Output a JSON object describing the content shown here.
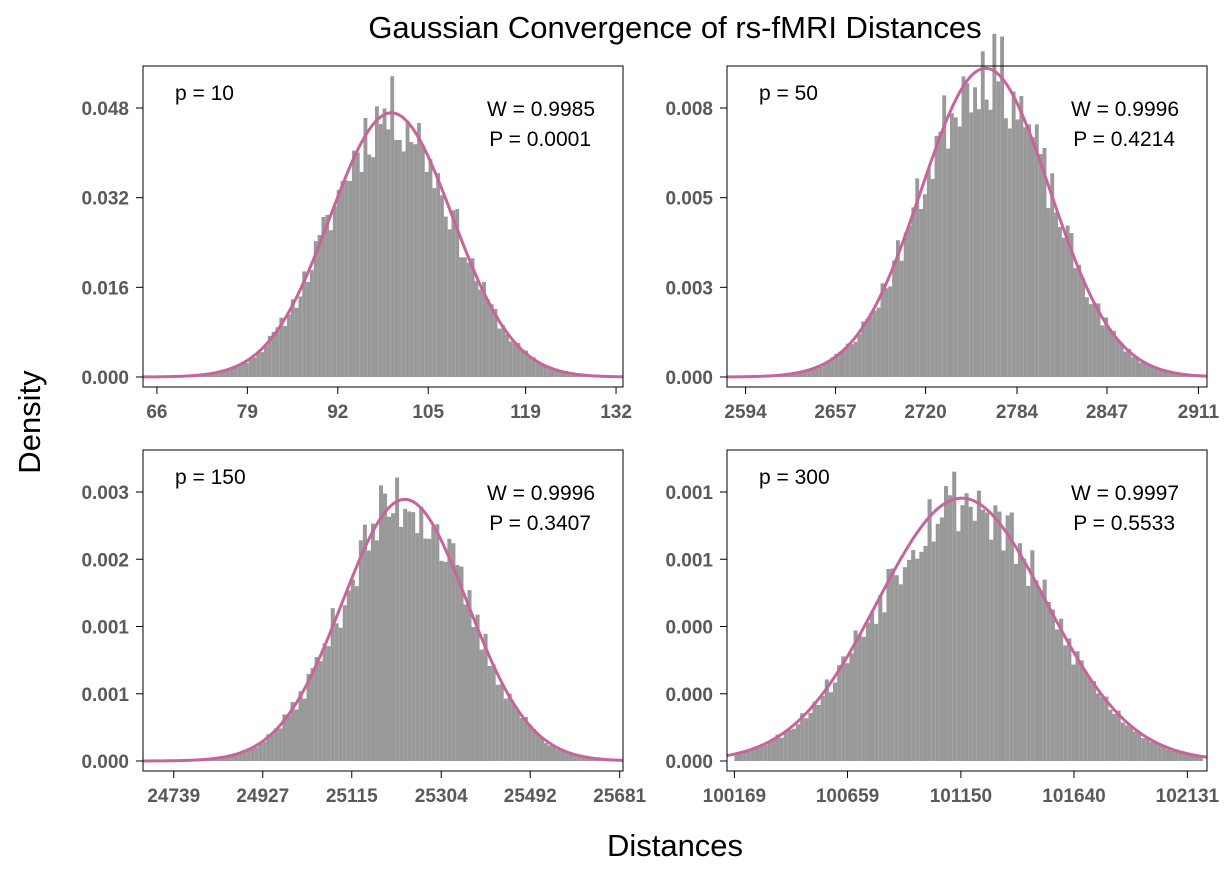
{
  "figure": {
    "title": "Gaussian Convergence of rs-fMRI Distances",
    "xlabel": "Distances",
    "ylabel": "Density"
  },
  "colors": {
    "bars": "#999999",
    "curve": "#C8649C"
  },
  "chart_data": [
    {
      "type": "bar",
      "panel_label": "p = 10",
      "stat_w": "W = 0.9985",
      "stat_p": "P = 0.0001",
      "xticks": [
        "66",
        "79",
        "92",
        "105",
        "119",
        "132"
      ],
      "yticks": [
        "0.000",
        "0.016",
        "0.032",
        "0.048"
      ],
      "xlim": [
        64,
        133
      ],
      "ylim": [
        0,
        0.052
      ],
      "normal_fit": {
        "mean": 99.7,
        "sd": 8.8
      },
      "bins": {
        "start": 66,
        "width": 0.55
      },
      "jitter_seed": 11
    },
    {
      "type": "bar",
      "panel_label": "p = 50",
      "stat_w": "W = 0.9996",
      "stat_p": "P = 0.4214",
      "xticks": [
        "2594",
        "2657",
        "2720",
        "2784",
        "2847",
        "2911"
      ],
      "yticks": [
        "0.000",
        "0.003",
        "0.005",
        "0.008"
      ],
      "xlim": [
        2581,
        2917
      ],
      "ylim": [
        0,
        0.0087
      ],
      "normal_fit": {
        "mean": 2762,
        "sd": 45
      },
      "bins": {
        "start": 2594,
        "width": 2.7
      },
      "jitter_seed": 23
    },
    {
      "type": "bar",
      "panel_label": "p = 150",
      "stat_w": "W = 0.9996",
      "stat_p": "P = 0.3407",
      "xticks": [
        "24739",
        "24927",
        "25115",
        "25304",
        "25492",
        "25681"
      ],
      "yticks": [
        "0.000",
        "0.001",
        "0.001",
        "0.002",
        "0.003"
      ],
      "xlim": [
        24674,
        25688
      ],
      "ylim": [
        0,
        0.0035
      ],
      "normal_fit": {
        "mean": 25227,
        "sd": 132
      },
      "bins": {
        "start": 24739,
        "width": 8.5
      },
      "jitter_seed": 37
    },
    {
      "type": "bar",
      "panel_label": "p = 300",
      "stat_w": "W = 0.9997",
      "stat_p": "P = 0.5533",
      "xticks": [
        "100169",
        "100659",
        "101150",
        "101640",
        "102131"
      ],
      "yticks": [
        "0.000",
        "0.000",
        "0.000",
        "0.001",
        "0.001"
      ],
      "xlim": [
        100137,
        102216
      ],
      "ylim": [
        0,
        0.00126
      ],
      "normal_fit": {
        "mean": 101154,
        "sd": 365
      },
      "bins": {
        "start": 100169,
        "width": 17.8
      },
      "jitter_seed": 53
    }
  ]
}
